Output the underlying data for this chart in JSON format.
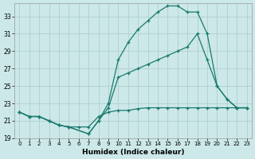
{
  "xlabel": "Humidex (Indice chaleur)",
  "bg_color": "#cce8e8",
  "grid_color": "#b0d0d0",
  "line_color": "#1a7a6e",
  "xlim": [
    -0.5,
    23.5
  ],
  "ylim": [
    19,
    34.5
  ],
  "xticks": [
    0,
    1,
    2,
    3,
    4,
    5,
    6,
    7,
    8,
    9,
    10,
    11,
    12,
    13,
    14,
    15,
    16,
    17,
    18,
    19,
    20,
    21,
    22,
    23
  ],
  "yticks": [
    19,
    21,
    23,
    25,
    27,
    29,
    31,
    33
  ],
  "line1_x": [
    0,
    1,
    2,
    3,
    4,
    5,
    6,
    7,
    8,
    9,
    10,
    11,
    12,
    13,
    14,
    15,
    16,
    17,
    18,
    19,
    20,
    21,
    22,
    23
  ],
  "line1_y": [
    22.0,
    21.5,
    21.5,
    21.0,
    20.5,
    20.3,
    20.3,
    20.3,
    21.5,
    22.0,
    22.2,
    22.2,
    22.4,
    22.5,
    22.5,
    22.5,
    22.5,
    22.5,
    22.5,
    22.5,
    22.5,
    22.5,
    22.5,
    22.5
  ],
  "line2_x": [
    0,
    1,
    2,
    3,
    4,
    5,
    7,
    8,
    9,
    10,
    11,
    12,
    13,
    14,
    15,
    16,
    17,
    18,
    19,
    20,
    21,
    22,
    23
  ],
  "line2_y": [
    22.0,
    21.5,
    21.5,
    21.0,
    20.5,
    20.3,
    19.5,
    21.0,
    22.5,
    26.0,
    26.5,
    27.0,
    27.5,
    28.0,
    28.5,
    29.0,
    29.5,
    31.0,
    28.0,
    25.0,
    23.5,
    22.5,
    22.5
  ],
  "line3_x": [
    0,
    1,
    2,
    3,
    4,
    5,
    7,
    8,
    9,
    10,
    11,
    12,
    13,
    14,
    15,
    16,
    17,
    18,
    19,
    20,
    21,
    22,
    23
  ],
  "line3_y": [
    22.0,
    21.5,
    21.5,
    21.0,
    20.5,
    20.3,
    19.5,
    21.0,
    23.0,
    28.0,
    30.0,
    31.5,
    32.5,
    33.5,
    34.2,
    34.2,
    33.5,
    33.5,
    31.0,
    25.0,
    23.5,
    22.5,
    22.5
  ]
}
